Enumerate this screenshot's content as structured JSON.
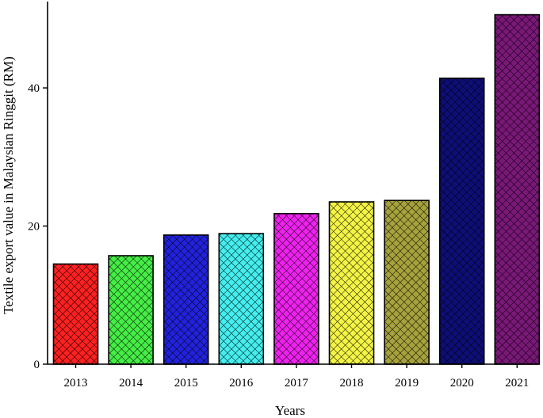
{
  "chart_data": {
    "type": "bar",
    "categories": [
      "2013",
      "2014",
      "2015",
      "2016",
      "2017",
      "2018",
      "2019",
      "2020",
      "2021"
    ],
    "values": [
      14.5,
      15.7,
      18.7,
      18.9,
      21.8,
      23.5,
      23.7,
      41.4,
      50.6
    ],
    "colors": [
      "#ff2020",
      "#44ee44",
      "#2222dd",
      "#44eeee",
      "#ee22ee",
      "#f4f444",
      "#a6a23c",
      "#0e0e78",
      "#7a1878"
    ],
    "pattern": "crosshatch",
    "title": "",
    "xlabel": "Years",
    "ylabel": "Textile export value in Malaysian Ringgit (RM)",
    "ylim": [
      0,
      52.5
    ],
    "yticks": [
      0,
      20,
      40
    ],
    "grid": false,
    "legend": "none"
  }
}
